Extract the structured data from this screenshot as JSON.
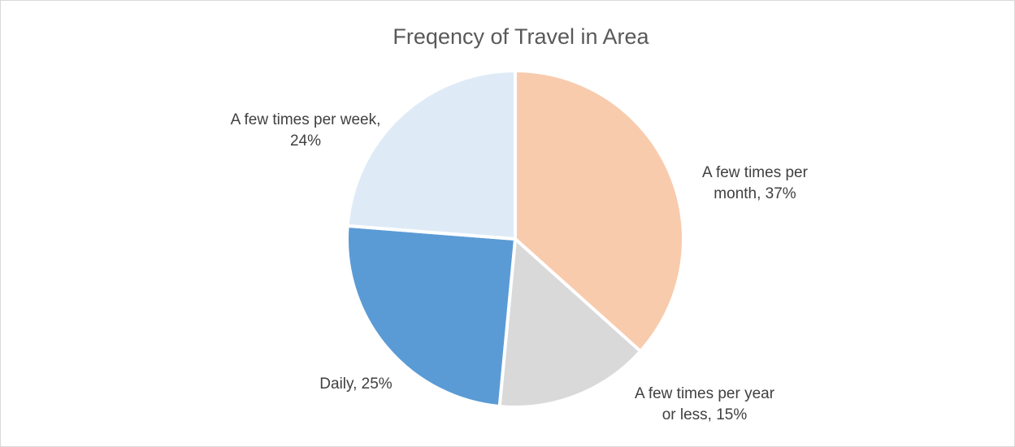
{
  "chart_data": {
    "type": "pie",
    "title": "Freqency of Travel in Area",
    "values": [
      37,
      15,
      25,
      24
    ],
    "value_labels": [
      "A few times per month, 37%",
      "A few times per year or less, 15%",
      "Daily, 25%",
      "A few times per week, 24%"
    ],
    "colors": [
      "#F8CBAD",
      "#D9D9D9",
      "#5B9BD5",
      "#DEEBF7"
    ]
  }
}
